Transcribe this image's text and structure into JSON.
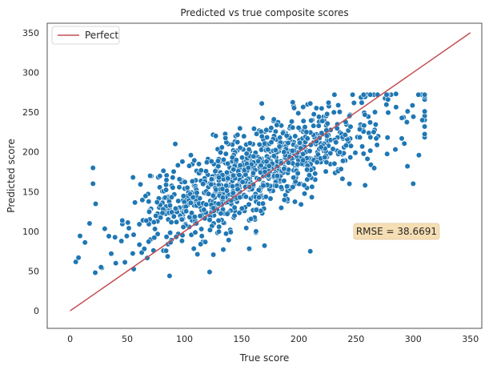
{
  "chart_data": {
    "type": "scatter",
    "title": "Predicted vs true composite scores",
    "xlabel": "True score",
    "ylabel": "Predicted score",
    "xlim": [
      -20,
      360
    ],
    "ylim": [
      -22,
      362
    ],
    "xticks": [
      0,
      50,
      100,
      150,
      200,
      250,
      300,
      350
    ],
    "yticks": [
      0,
      50,
      100,
      150,
      200,
      250,
      300,
      350
    ],
    "grid": false,
    "legend": {
      "placement": "top-left",
      "entries": [
        "Perfect"
      ]
    },
    "point_color": "#1f77b4",
    "line_color": "#c44e52",
    "perfect_line": {
      "name": "Perfect",
      "x": [
        0,
        350
      ],
      "y": [
        0,
        350
      ]
    },
    "annotation": {
      "text": "RMSE = 38.6691",
      "x": 250,
      "y": 100,
      "background": "#f5deb3"
    },
    "scatter": {
      "n_points": 1000,
      "x_range": [
        5,
        310
      ],
      "predicted_trend": {
        "at_x0": 75,
        "slope": 0.6
      },
      "residual_sd": 28,
      "predicted_clip": [
        42,
        272
      ],
      "seed": 7,
      "edge_points": [
        {
          "x": 20,
          "y": 180
        },
        {
          "x": 22,
          "y": 48
        },
        {
          "x": 27,
          "y": 55
        },
        {
          "x": 40,
          "y": 60
        },
        {
          "x": 55,
          "y": 168
        },
        {
          "x": 70,
          "y": 170
        },
        {
          "x": 87,
          "y": 44
        },
        {
          "x": 92,
          "y": 210
        },
        {
          "x": 122,
          "y": 49
        },
        {
          "x": 170,
          "y": 82
        },
        {
          "x": 210,
          "y": 75
        },
        {
          "x": 210,
          "y": 261
        },
        {
          "x": 226,
          "y": 262
        },
        {
          "x": 255,
          "y": 262
        },
        {
          "x": 258,
          "y": 158
        },
        {
          "x": 278,
          "y": 266
        },
        {
          "x": 285,
          "y": 273
        },
        {
          "x": 290,
          "y": 217
        },
        {
          "x": 295,
          "y": 182
        },
        {
          "x": 300,
          "y": 160
        },
        {
          "x": 305,
          "y": 196
        },
        {
          "x": 308,
          "y": 240
        },
        {
          "x": 310,
          "y": 251
        },
        {
          "x": 310,
          "y": 232
        },
        {
          "x": 17,
          "y": 110
        },
        {
          "x": 20,
          "y": 160
        },
        {
          "x": 13,
          "y": 86
        },
        {
          "x": 36,
          "y": 72
        }
      ]
    }
  }
}
